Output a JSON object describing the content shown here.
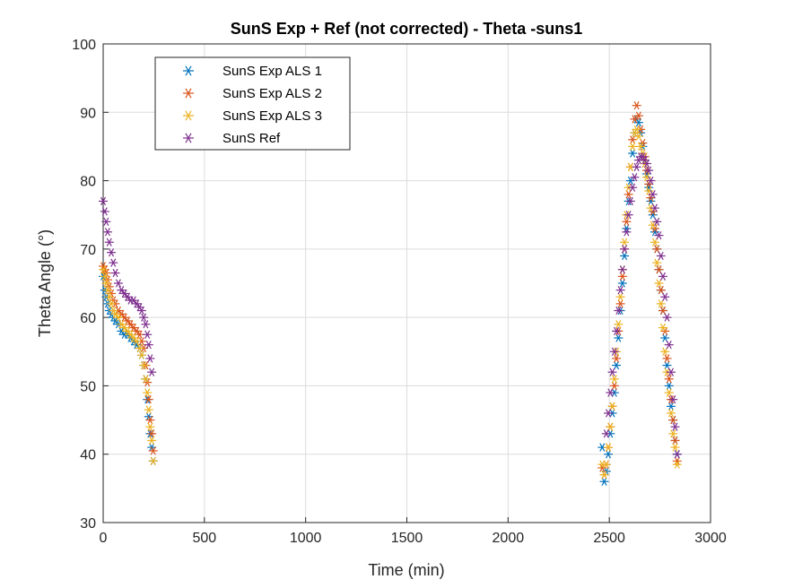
{
  "chart_data": {
    "type": "scatter",
    "title": "SunS Exp + Ref (not corrected) - Theta -suns1",
    "xlabel": "Time (min)",
    "ylabel": "Theta Angle (°)",
    "xlim": [
      0,
      3000
    ],
    "ylim": [
      30,
      100
    ],
    "xticks": [
      0,
      500,
      1000,
      1500,
      2000,
      2500,
      3000
    ],
    "yticks": [
      30,
      40,
      50,
      60,
      70,
      80,
      90,
      100
    ],
    "grid": true,
    "legend_position": "top-left",
    "marker": "asterisk",
    "series": [
      {
        "name": "SunS Exp ALS 1",
        "color": "#0072BD",
        "x": [
          0,
          8,
          15,
          22,
          30,
          40,
          50,
          60,
          75,
          90,
          105,
          120,
          135,
          150,
          165,
          180,
          190,
          200,
          210,
          218,
          225,
          232,
          240,
          247,
          2465,
          2475,
          2485,
          2495,
          2505,
          2515,
          2525,
          2535,
          2545,
          2555,
          2565,
          2575,
          2585,
          2595,
          2605,
          2615,
          2625,
          2635,
          2645,
          2655,
          2665,
          2675,
          2685,
          2695,
          2705,
          2715,
          2725,
          2735,
          2745,
          2755,
          2765,
          2775,
          2785,
          2795,
          2805,
          2815,
          2825,
          2835
        ],
        "y": [
          66,
          64,
          63,
          62,
          61,
          60.5,
          60,
          59.5,
          59,
          58,
          57.5,
          57.5,
          57,
          56.5,
          56,
          55.5,
          54.5,
          53,
          51,
          48,
          45.5,
          43,
          41,
          39,
          41,
          36,
          37.5,
          40,
          43,
          46,
          49,
          53,
          57,
          61,
          65,
          69,
          73,
          77,
          80,
          84,
          87,
          89,
          88.5,
          87,
          85,
          83,
          81,
          79,
          77,
          75,
          72.5,
          70,
          67,
          64,
          61,
          57,
          53,
          50,
          47,
          45,
          42,
          40
        ]
      },
      {
        "name": "SunS Exp ALS 2",
        "color": "#D95319",
        "x": [
          0,
          8,
          15,
          22,
          30,
          40,
          50,
          60,
          75,
          90,
          105,
          120,
          135,
          150,
          165,
          180,
          190,
          200,
          210,
          218,
          225,
          232,
          240,
          247,
          2465,
          2475,
          2485,
          2495,
          2505,
          2515,
          2525,
          2535,
          2545,
          2555,
          2565,
          2575,
          2585,
          2595,
          2605,
          2615,
          2625,
          2635,
          2645,
          2655,
          2665,
          2675,
          2685,
          2695,
          2705,
          2715,
          2725,
          2735,
          2745,
          2755,
          2765,
          2775,
          2785,
          2795,
          2805,
          2815,
          2825,
          2835
        ],
        "y": [
          67.5,
          67,
          66.5,
          65.5,
          64.5,
          63.5,
          62.5,
          62,
          61,
          60.5,
          60,
          59.5,
          59,
          58.5,
          58,
          57.5,
          56.5,
          55.5,
          53,
          50.5,
          48,
          45,
          43,
          40.5,
          38,
          37,
          38.5,
          41,
          44,
          47,
          50,
          54,
          58,
          62,
          66,
          70,
          74,
          78,
          82,
          86,
          89,
          91,
          89.5,
          87.5,
          85.5,
          83.5,
          81.5,
          79.5,
          77.5,
          75.5,
          73,
          70,
          67,
          64,
          61,
          58,
          54,
          51,
          48,
          45,
          42,
          39
        ]
      },
      {
        "name": "SunS Exp ALS 3",
        "color": "#EDB120",
        "x": [
          0,
          8,
          15,
          22,
          30,
          40,
          50,
          60,
          75,
          90,
          105,
          120,
          135,
          150,
          165,
          180,
          190,
          200,
          210,
          218,
          225,
          232,
          240,
          247,
          2465,
          2475,
          2485,
          2495,
          2505,
          2515,
          2525,
          2535,
          2545,
          2555,
          2565,
          2575,
          2585,
          2595,
          2605,
          2615,
          2625,
          2635,
          2645,
          2655,
          2665,
          2675,
          2685,
          2695,
          2705,
          2715,
          2725,
          2735,
          2745,
          2755,
          2765,
          2775,
          2785,
          2795,
          2805,
          2815,
          2825,
          2835
        ],
        "y": [
          67,
          66,
          65,
          64,
          63,
          62,
          61,
          60.5,
          60,
          59,
          58.5,
          58,
          57.5,
          57,
          56.5,
          55.5,
          54.5,
          53,
          51,
          49,
          46.5,
          44,
          42,
          39,
          38.5,
          37,
          38.5,
          41,
          44,
          47,
          51,
          55,
          59,
          63,
          67,
          71,
          75,
          79,
          82,
          85,
          87,
          87.5,
          86.5,
          85,
          84,
          82.5,
          80.5,
          78.5,
          76,
          73.5,
          71,
          68,
          65,
          62,
          58.5,
          55,
          52,
          49,
          46,
          43,
          41,
          38.5
        ]
      },
      {
        "name": "SunS Ref",
        "color": "#7E2F8E",
        "x": [
          0,
          8,
          15,
          22,
          30,
          40,
          50,
          60,
          75,
          90,
          105,
          120,
          135,
          150,
          165,
          180,
          190,
          200,
          210,
          218,
          225,
          232,
          240,
          2485,
          2495,
          2505,
          2515,
          2525,
          2535,
          2545,
          2555,
          2565,
          2575,
          2585,
          2595,
          2605,
          2615,
          2625,
          2635,
          2645,
          2655,
          2665,
          2675,
          2685,
          2695,
          2705,
          2715,
          2725,
          2735,
          2745,
          2755,
          2765,
          2775,
          2785,
          2795,
          2805,
          2815,
          2825,
          2835
        ],
        "y": [
          77,
          75.5,
          74,
          72.5,
          71,
          69.5,
          68,
          66.5,
          65,
          64,
          63.5,
          63,
          62.5,
          62.5,
          62,
          61.5,
          61,
          60,
          59,
          57.5,
          56,
          54,
          52,
          43,
          46,
          49,
          52,
          55,
          58,
          61,
          64,
          67,
          70,
          72.5,
          75,
          77,
          79,
          80.5,
          82,
          83,
          83.5,
          83.5,
          83,
          82.5,
          81.5,
          80,
          78,
          76,
          74,
          72,
          69,
          66,
          63,
          60,
          56,
          52,
          48,
          44,
          40
        ]
      }
    ]
  }
}
